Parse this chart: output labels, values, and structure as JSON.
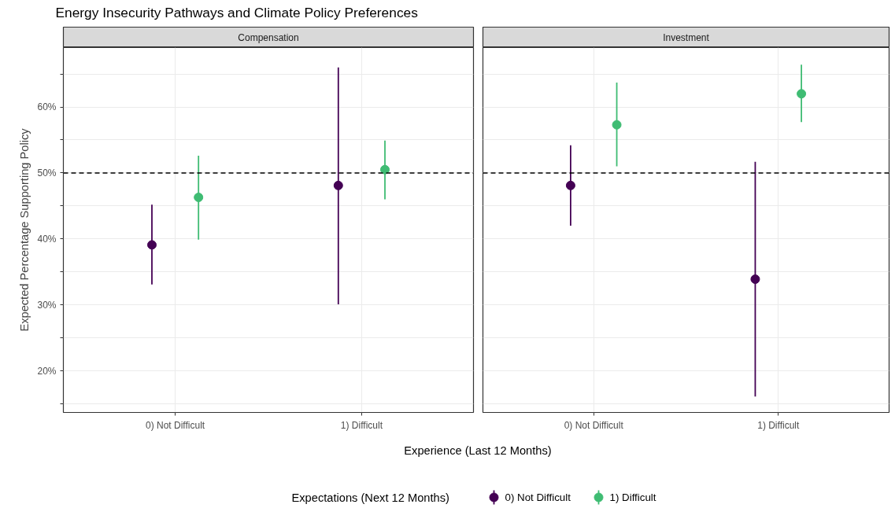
{
  "chart_data": [
    {
      "type": "scatter",
      "title": "Energy Insecurity Pathways and Climate Policy Preferences",
      "subtitle": "Compensation",
      "xlabel": "Experience (Last 12 Months)",
      "ylabel": "Expected Percentage Supporting Policy",
      "legend_title": "Expectations (Next 12 Months)",
      "legend": "bottom",
      "grid": true,
      "marker": "circle",
      "categories": [
        "0) Not Difficult",
        "1) Difficult"
      ],
      "ylim": [
        13.7,
        69.0
      ],
      "yticks": [
        {
          "value": 15,
          "label": null
        },
        {
          "value": 20,
          "label": "20%"
        },
        {
          "value": 25,
          "label": null
        },
        {
          "value": 30,
          "label": "30%"
        },
        {
          "value": 35,
          "label": null
        },
        {
          "value": 40,
          "label": "40%"
        },
        {
          "value": 45,
          "label": null
        },
        {
          "value": 50,
          "label": "50%"
        },
        {
          "value": 55,
          "label": null
        },
        {
          "value": 60,
          "label": "60%"
        },
        {
          "value": 65,
          "label": null
        }
      ],
      "ref_lines": [
        {
          "axis": "y",
          "value": 50,
          "line_style": "dashed",
          "color": "#000000"
        }
      ],
      "series": [
        {
          "name": "0) Not Difficult",
          "color": "#440154",
          "values": [
            39.1,
            48.1
          ],
          "errors": [
            [
              33.1,
              45.2
            ],
            [
              30.1,
              66.0
            ]
          ]
        },
        {
          "name": "1) Difficult",
          "color": "#3fbc73",
          "values": [
            46.3,
            50.5
          ],
          "errors": [
            [
              39.9,
              52.6
            ],
            [
              46.0,
              54.9
            ]
          ]
        }
      ]
    },
    {
      "type": "scatter",
      "subtitle": "Investment",
      "grid": true,
      "marker": "circle",
      "tick_labels": "x",
      "categories": [
        "0) Not Difficult",
        "1) Difficult"
      ],
      "ylim": [
        13.7,
        69.0
      ],
      "yticks": [
        {
          "value": 15,
          "label": null
        },
        {
          "value": 20,
          "label": null
        },
        {
          "value": 25,
          "label": null
        },
        {
          "value": 30,
          "label": null
        },
        {
          "value": 35,
          "label": null
        },
        {
          "value": 40,
          "label": null
        },
        {
          "value": 45,
          "label": null
        },
        {
          "value": 50,
          "label": null
        },
        {
          "value": 55,
          "label": null
        },
        {
          "value": 60,
          "label": null
        },
        {
          "value": 65,
          "label": null
        }
      ],
      "ref_lines": [
        {
          "axis": "y",
          "value": 50,
          "line_style": "dashed",
          "color": "#000000"
        }
      ],
      "series": [
        {
          "color": "#440154",
          "values": [
            48.1,
            33.9
          ],
          "errors": [
            [
              42.0,
              54.2
            ],
            [
              16.1,
              51.7
            ]
          ]
        },
        {
          "color": "#3fbc73",
          "values": [
            57.3,
            62.0
          ],
          "errors": [
            [
              51.0,
              63.7
            ],
            [
              57.7,
              66.4
            ]
          ]
        }
      ]
    }
  ]
}
